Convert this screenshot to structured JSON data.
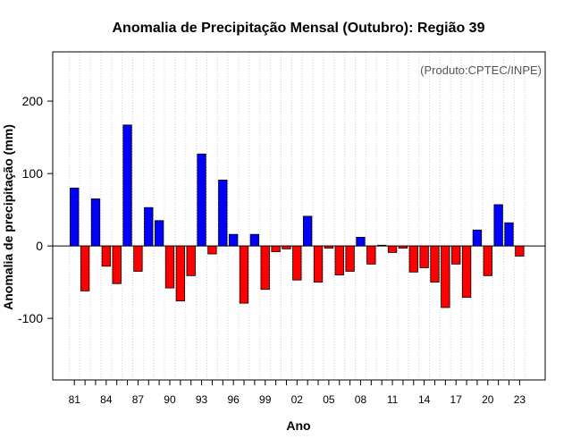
{
  "chart_data": {
    "type": "bar",
    "title": "Anomalia de Precipitação Mensal (Outubro): Região 39",
    "xlabel": "Ano",
    "ylabel": "Anomalia de precipitação (mm)",
    "credit": "(Produto:CPTEC/INPE)",
    "ylim": [
      -185,
      268
    ],
    "yticks": [
      -100,
      0,
      100,
      200
    ],
    "years": [
      1981,
      1982,
      1983,
      1984,
      1985,
      1986,
      1987,
      1988,
      1989,
      1990,
      1991,
      1992,
      1993,
      1994,
      1995,
      1996,
      1997,
      1998,
      1999,
      2000,
      2001,
      2002,
      2003,
      2004,
      2005,
      2006,
      2007,
      2008,
      2009,
      2010,
      2011,
      2012,
      2013,
      2014,
      2015,
      2016,
      2017,
      2018,
      2019,
      2020,
      2021,
      2022,
      2023
    ],
    "values": [
      80,
      -62,
      65,
      -28,
      -52,
      167,
      -35,
      53,
      35,
      -58,
      -76,
      -41,
      127,
      -11,
      91,
      16,
      -79,
      16,
      -60,
      -8,
      -4,
      -47,
      41,
      -50,
      -3,
      -40,
      -35,
      12,
      -25,
      1,
      -9,
      -3,
      -36,
      -30,
      -50,
      -85,
      -25,
      -71,
      22,
      -41,
      57,
      32,
      -14
    ],
    "xtick_labels": [
      "81",
      "84",
      "87",
      "90",
      "93",
      "96",
      "99",
      "02",
      "05",
      "08",
      "11",
      "14",
      "17",
      "20",
      "23"
    ],
    "positive_color": "#0000ff",
    "negative_color": "#ff0000",
    "grid": true
  }
}
